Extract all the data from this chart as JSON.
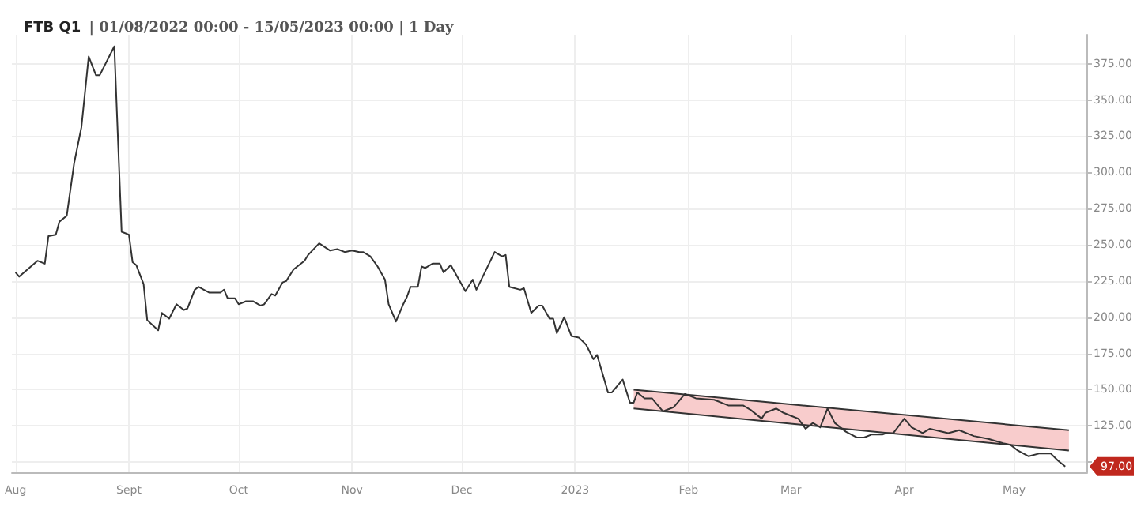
{
  "chart_data": {
    "type": "line",
    "title": "FTB Q1",
    "subtitle": "| 01/08/2022 00:00 - 15/05/2023 00:00 | 1 Day",
    "xlim": [
      "2022-07-31",
      "2023-05-21"
    ],
    "xticks": [
      {
        "value": "2022-08-01",
        "label": "Aug"
      },
      {
        "value": "2022-09-01",
        "label": "Sept"
      },
      {
        "value": "2022-10-01",
        "label": "Oct"
      },
      {
        "value": "2022-11-01",
        "label": "Nov"
      },
      {
        "value": "2022-12-01",
        "label": "Dec"
      },
      {
        "value": "2023-01-01",
        "label": "2023"
      },
      {
        "value": "2023-02-01",
        "label": "Feb"
      },
      {
        "value": "2023-03-01",
        "label": "Mar"
      },
      {
        "value": "2023-04-01",
        "label": "Apr"
      },
      {
        "value": "2023-05-01",
        "label": "May"
      }
    ],
    "ylim": [
      93,
      395
    ],
    "yticks": [
      {
        "value": 100,
        "label": null
      },
      {
        "value": 125,
        "label": "125.00"
      },
      {
        "value": 150,
        "label": "150.00"
      },
      {
        "value": 175,
        "label": "175.00"
      },
      {
        "value": 200,
        "label": "200.00"
      },
      {
        "value": 225,
        "label": "225.00"
      },
      {
        "value": 250,
        "label": "250.00"
      },
      {
        "value": 275,
        "label": "275.00"
      },
      {
        "value": 300,
        "label": "300.00"
      },
      {
        "value": 325,
        "label": "325.00"
      },
      {
        "value": 350,
        "label": "350.00"
      },
      {
        "value": 375,
        "label": "375.00"
      }
    ],
    "grid": true,
    "marker": "none",
    "line_style": "solid",
    "series": [
      {
        "color": "#333333",
        "x": [
          "2022-08-01",
          "2022-08-02",
          "2022-08-07",
          "2022-08-09",
          "2022-08-10",
          "2022-08-12",
          "2022-08-13",
          "2022-08-15",
          "2022-08-17",
          "2022-08-19",
          "2022-08-21",
          "2022-08-23",
          "2022-08-24",
          "2022-08-28",
          "2022-08-30",
          "2022-09-01",
          "2022-09-02",
          "2022-09-03",
          "2022-09-05",
          "2022-09-06",
          "2022-09-09",
          "2022-09-10",
          "2022-09-12",
          "2022-09-14",
          "2022-09-16",
          "2022-09-17",
          "2022-09-19",
          "2022-09-20",
          "2022-09-23",
          "2022-09-26",
          "2022-09-27",
          "2022-09-28",
          "2022-09-30",
          "2022-10-01",
          "2022-10-03",
          "2022-10-05",
          "2022-10-07",
          "2022-10-08",
          "2022-10-10",
          "2022-10-11",
          "2022-10-13",
          "2022-10-14",
          "2022-10-16",
          "2022-10-19",
          "2022-10-20",
          "2022-10-23",
          "2022-10-26",
          "2022-10-28",
          "2022-10-30",
          "2022-11-01",
          "2022-11-03",
          "2022-11-04",
          "2022-11-06",
          "2022-11-08",
          "2022-11-10",
          "2022-11-11",
          "2022-11-13",
          "2022-11-15",
          "2022-11-16",
          "2022-11-17",
          "2022-11-19",
          "2022-11-20",
          "2022-11-21",
          "2022-11-23",
          "2022-11-25",
          "2022-11-26",
          "2022-11-28",
          "2022-12-02",
          "2022-12-04",
          "2022-12-05",
          "2022-12-10",
          "2022-12-12",
          "2022-12-13",
          "2022-12-14",
          "2022-12-17",
          "2022-12-18",
          "2022-12-20",
          "2022-12-22",
          "2022-12-23",
          "2022-12-25",
          "2022-12-26",
          "2022-12-27",
          "2022-12-29",
          "2022-12-31",
          "2023-01-02",
          "2023-01-04",
          "2023-01-06",
          "2023-01-07",
          "2023-01-10",
          "2023-01-11",
          "2023-01-14",
          "2023-01-16",
          "2023-01-17",
          "2023-01-18",
          "2023-01-20",
          "2023-01-22",
          "2023-01-25",
          "2023-01-28",
          "2023-01-29",
          "2023-01-31",
          "2023-02-03",
          "2023-02-08",
          "2023-02-12",
          "2023-02-16",
          "2023-02-18",
          "2023-02-21",
          "2023-02-22",
          "2023-02-25",
          "2023-02-27",
          "2023-03-01",
          "2023-03-03",
          "2023-03-05",
          "2023-03-07",
          "2023-03-09",
          "2023-03-11",
          "2023-03-13",
          "2023-03-16",
          "2023-03-19",
          "2023-03-21",
          "2023-03-23",
          "2023-03-26",
          "2023-03-27",
          "2023-03-29",
          "2023-04-01",
          "2023-04-03",
          "2023-04-06",
          "2023-04-08",
          "2023-04-13",
          "2023-04-16",
          "2023-04-20",
          "2023-04-24",
          "2023-04-28",
          "2023-04-30",
          "2023-05-02",
          "2023-05-05",
          "2023-05-08",
          "2023-05-11",
          "2023-05-13",
          "2023-05-15"
        ],
        "values": [
          231,
          228,
          239,
          237,
          256,
          257,
          266,
          270,
          306,
          331,
          380,
          367,
          367,
          387,
          259,
          257,
          238,
          236,
          223,
          198,
          191,
          203,
          199,
          209,
          205,
          206,
          219,
          221,
          217,
          217,
          219,
          213,
          213,
          209,
          211,
          211,
          208,
          209,
          216,
          215,
          224,
          225,
          233,
          239,
          243,
          251,
          246,
          247,
          245,
          246,
          245,
          245,
          242,
          235,
          226,
          209,
          197,
          209,
          214,
          221,
          221,
          235,
          234,
          237,
          237,
          231,
          236,
          218,
          226,
          219,
          245,
          242,
          243,
          221,
          219,
          220,
          203,
          208,
          208,
          199,
          199,
          189,
          200,
          187,
          186,
          181,
          171,
          174,
          148,
          148,
          157,
          141,
          141,
          148,
          144,
          144,
          135,
          138,
          141,
          147,
          144,
          143,
          139,
          139,
          136,
          130,
          134,
          137,
          134,
          132,
          130,
          123,
          127,
          124,
          137,
          127,
          121,
          117,
          117,
          119,
          119,
          120,
          120,
          130,
          124,
          120,
          123,
          120,
          122,
          118,
          116,
          113,
          112,
          108,
          104,
          106,
          106,
          101,
          97
        ]
      },
      {
        "color": "#f8cccc",
        "x": [
          "2023-01-17",
          "2023-05-16"
        ],
        "values": [
          null,
          null
        ],
        "lower": [
          137,
          108
        ],
        "upper": [
          150,
          122
        ]
      },
      {
        "color": "#333333",
        "x": [
          "2023-01-17",
          "2023-05-16"
        ],
        "values": [
          150,
          122
        ]
      },
      {
        "color": "#333333",
        "x": [
          "2023-01-17",
          "2023-05-16"
        ],
        "values": [
          137,
          108
        ]
      }
    ],
    "annotations": [
      "97.00"
    ]
  }
}
